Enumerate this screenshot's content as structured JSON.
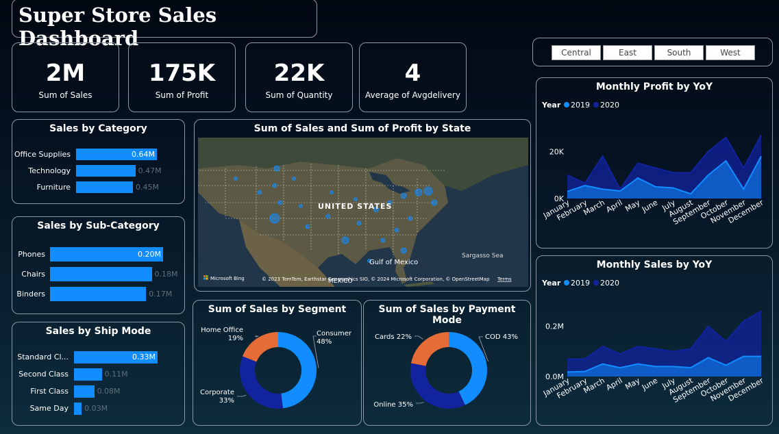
{
  "title": "Super Store Sales Dashboard",
  "kpis": [
    {
      "value": "2M",
      "label": "Sum of Sales"
    },
    {
      "value": "175K",
      "label": "Sum of Profit"
    },
    {
      "value": "22K",
      "label": "Sum of Quantity"
    },
    {
      "value": "4",
      "label": "Average of Avgdelivery"
    }
  ],
  "region_slicer": [
    "Central",
    "East",
    "South",
    "West"
  ],
  "map": {
    "title": "Sum of Sales and Sum of Profit by State",
    "labels": {
      "country": "UNITED STATES",
      "gulf": "Gulf of Mexico",
      "sea": "Sargasso Sea",
      "mexico": "MEXICO"
    },
    "bing": "Microsoft Bing",
    "copyright": "© 2023 TomTom, Earthstar Geographics SIO, © 2024 Microsoft Corporation, © OpenStreetMap",
    "terms": "Terms"
  },
  "colors": {
    "bar": "#118dff",
    "y2019": "#118dff",
    "y2020": "#12239e",
    "orange": "#e66c37",
    "donut_blue": "#118dff",
    "donut_navy": "#12239e"
  },
  "chart_data": [
    {
      "id": "sales_by_category",
      "type": "bar",
      "title": "Sales by Category",
      "categories": [
        "Office Supplies",
        "Technology",
        "Furniture"
      ],
      "values": [
        0.64,
        0.47,
        0.45
      ],
      "value_labels": [
        "0.64M",
        "0.47M",
        "0.45M"
      ]
    },
    {
      "id": "sales_by_subcategory",
      "type": "bar",
      "title": "Sales by Sub-Category",
      "categories": [
        "Phones",
        "Chairs",
        "Binders"
      ],
      "values": [
        0.2,
        0.18,
        0.17
      ],
      "value_labels": [
        "0.20M",
        "0.18M",
        "0.17M"
      ]
    },
    {
      "id": "sales_by_shipmode",
      "type": "bar",
      "title": "Sales by Ship Mode",
      "categories": [
        "Standard Cl...",
        "Second Class",
        "First Class",
        "Same Day"
      ],
      "values": [
        0.33,
        0.11,
        0.08,
        0.03
      ],
      "value_labels": [
        "0.33M",
        "0.11M",
        "0.08M",
        "0.03M"
      ]
    },
    {
      "id": "sales_by_segment",
      "type": "pie",
      "title": "Sum of Sales by Segment",
      "labels": [
        "Consumer",
        "Corporate",
        "Home Office"
      ],
      "values": [
        48,
        33,
        19
      ],
      "value_labels": [
        "48%",
        "33%",
        "19%"
      ]
    },
    {
      "id": "sales_by_payment",
      "type": "pie",
      "title": "Sum of Sales by Payment Mode",
      "labels": [
        "COD",
        "Online",
        "Cards"
      ],
      "values": [
        43,
        35,
        22
      ],
      "value_labels": [
        "43%",
        "35%",
        "22%"
      ]
    },
    {
      "id": "monthly_profit",
      "type": "area",
      "title": "Monthly Profit by YoY",
      "legend_title": "Year",
      "categories": [
        "January",
        "February",
        "March",
        "April",
        "May",
        "June",
        "July",
        "August",
        "September",
        "October",
        "November",
        "December"
      ],
      "series": [
        {
          "name": "2019",
          "values": [
            3000,
            5500,
            4000,
            3200,
            8700,
            5000,
            4500,
            2000,
            10000,
            16000,
            4000,
            18000
          ]
        },
        {
          "name": "2020",
          "values": [
            10000,
            6500,
            18000,
            4000,
            15000,
            13000,
            11000,
            11000,
            20000,
            26000,
            13000,
            27000
          ]
        }
      ],
      "ytick_labels": [
        "0K",
        "20K"
      ],
      "ytick_values": [
        0,
        20000
      ],
      "ylim": [
        0,
        32000
      ]
    },
    {
      "id": "monthly_sales",
      "type": "area",
      "title": "Monthly Sales by YoY",
      "legend_title": "Year",
      "categories": [
        "January",
        "February",
        "March",
        "April",
        "May",
        "June",
        "July",
        "August",
        "September",
        "October",
        "November",
        "December"
      ],
      "series": [
        {
          "name": "2019",
          "values": [
            0.018,
            0.02,
            0.05,
            0.035,
            0.05,
            0.04,
            0.04,
            0.035,
            0.075,
            0.045,
            0.08,
            0.08
          ]
        },
        {
          "name": "2020",
          "values": [
            0.07,
            0.07,
            0.12,
            0.09,
            0.12,
            0.11,
            0.1,
            0.11,
            0.2,
            0.14,
            0.22,
            0.26
          ]
        }
      ],
      "ytick_labels": [
        "0.0M",
        "0.2M"
      ],
      "ytick_values": [
        0,
        0.2
      ],
      "ylim": [
        0,
        0.3
      ]
    }
  ]
}
